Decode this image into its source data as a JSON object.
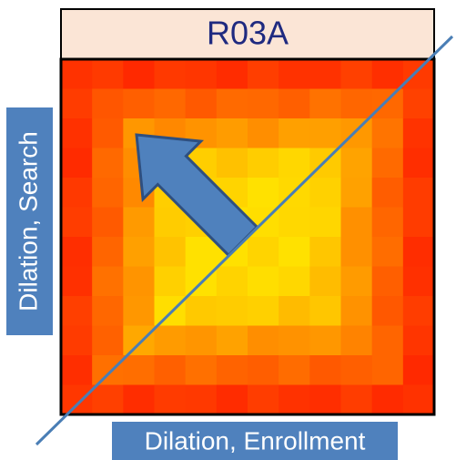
{
  "title": "R03A",
  "y_label": "Dilation, Search",
  "x_label": "Dilation, Enrollment"
}
